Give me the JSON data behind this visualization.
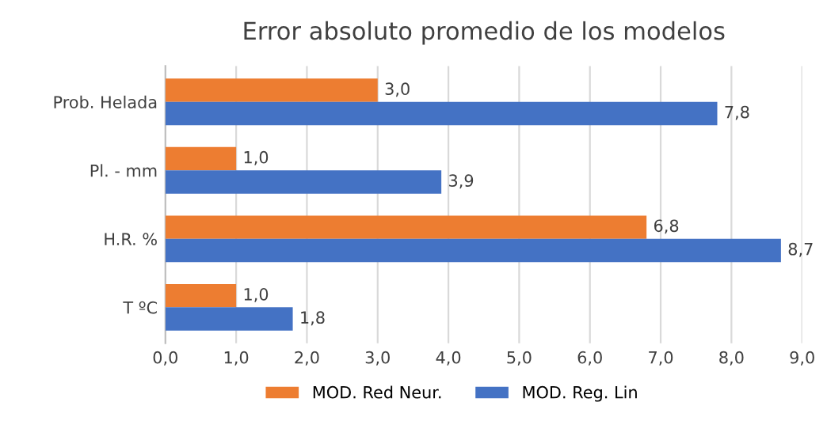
{
  "chart_data": {
    "type": "bar",
    "orientation": "horizontal",
    "title": "Error absoluto promedio de los modelos",
    "categories": [
      "Prob. Helada",
      "Pl. - mm",
      "H.R. %",
      "T ºC"
    ],
    "series": [
      {
        "name": "MOD. Red Neur.",
        "color": "#ed7d31",
        "values": [
          3.0,
          1.0,
          6.8,
          1.0
        ],
        "value_labels": [
          "3,0",
          "1,0",
          "6,8",
          "1,0"
        ]
      },
      {
        "name": "MOD. Reg. Lin",
        "color": "#4472c4",
        "values": [
          7.8,
          3.9,
          8.7,
          1.8
        ],
        "value_labels": [
          "7,8",
          "3,9",
          "8,7",
          "1,8"
        ]
      }
    ],
    "xlim": [
      0,
      9
    ],
    "xticks": [
      {
        "value": 0,
        "label": "0,0"
      },
      {
        "value": 1,
        "label": "1,0"
      },
      {
        "value": 2,
        "label": "2,0"
      },
      {
        "value": 3,
        "label": "3,0"
      },
      {
        "value": 4,
        "label": "4,0"
      },
      {
        "value": 5,
        "label": "5,0"
      },
      {
        "value": 6,
        "label": "6,0"
      },
      {
        "value": 7,
        "label": "7,0"
      },
      {
        "value": 8,
        "label": "8,0"
      },
      {
        "value": 9,
        "label": "9,0"
      }
    ],
    "grid": "x",
    "legend": "bottom"
  }
}
